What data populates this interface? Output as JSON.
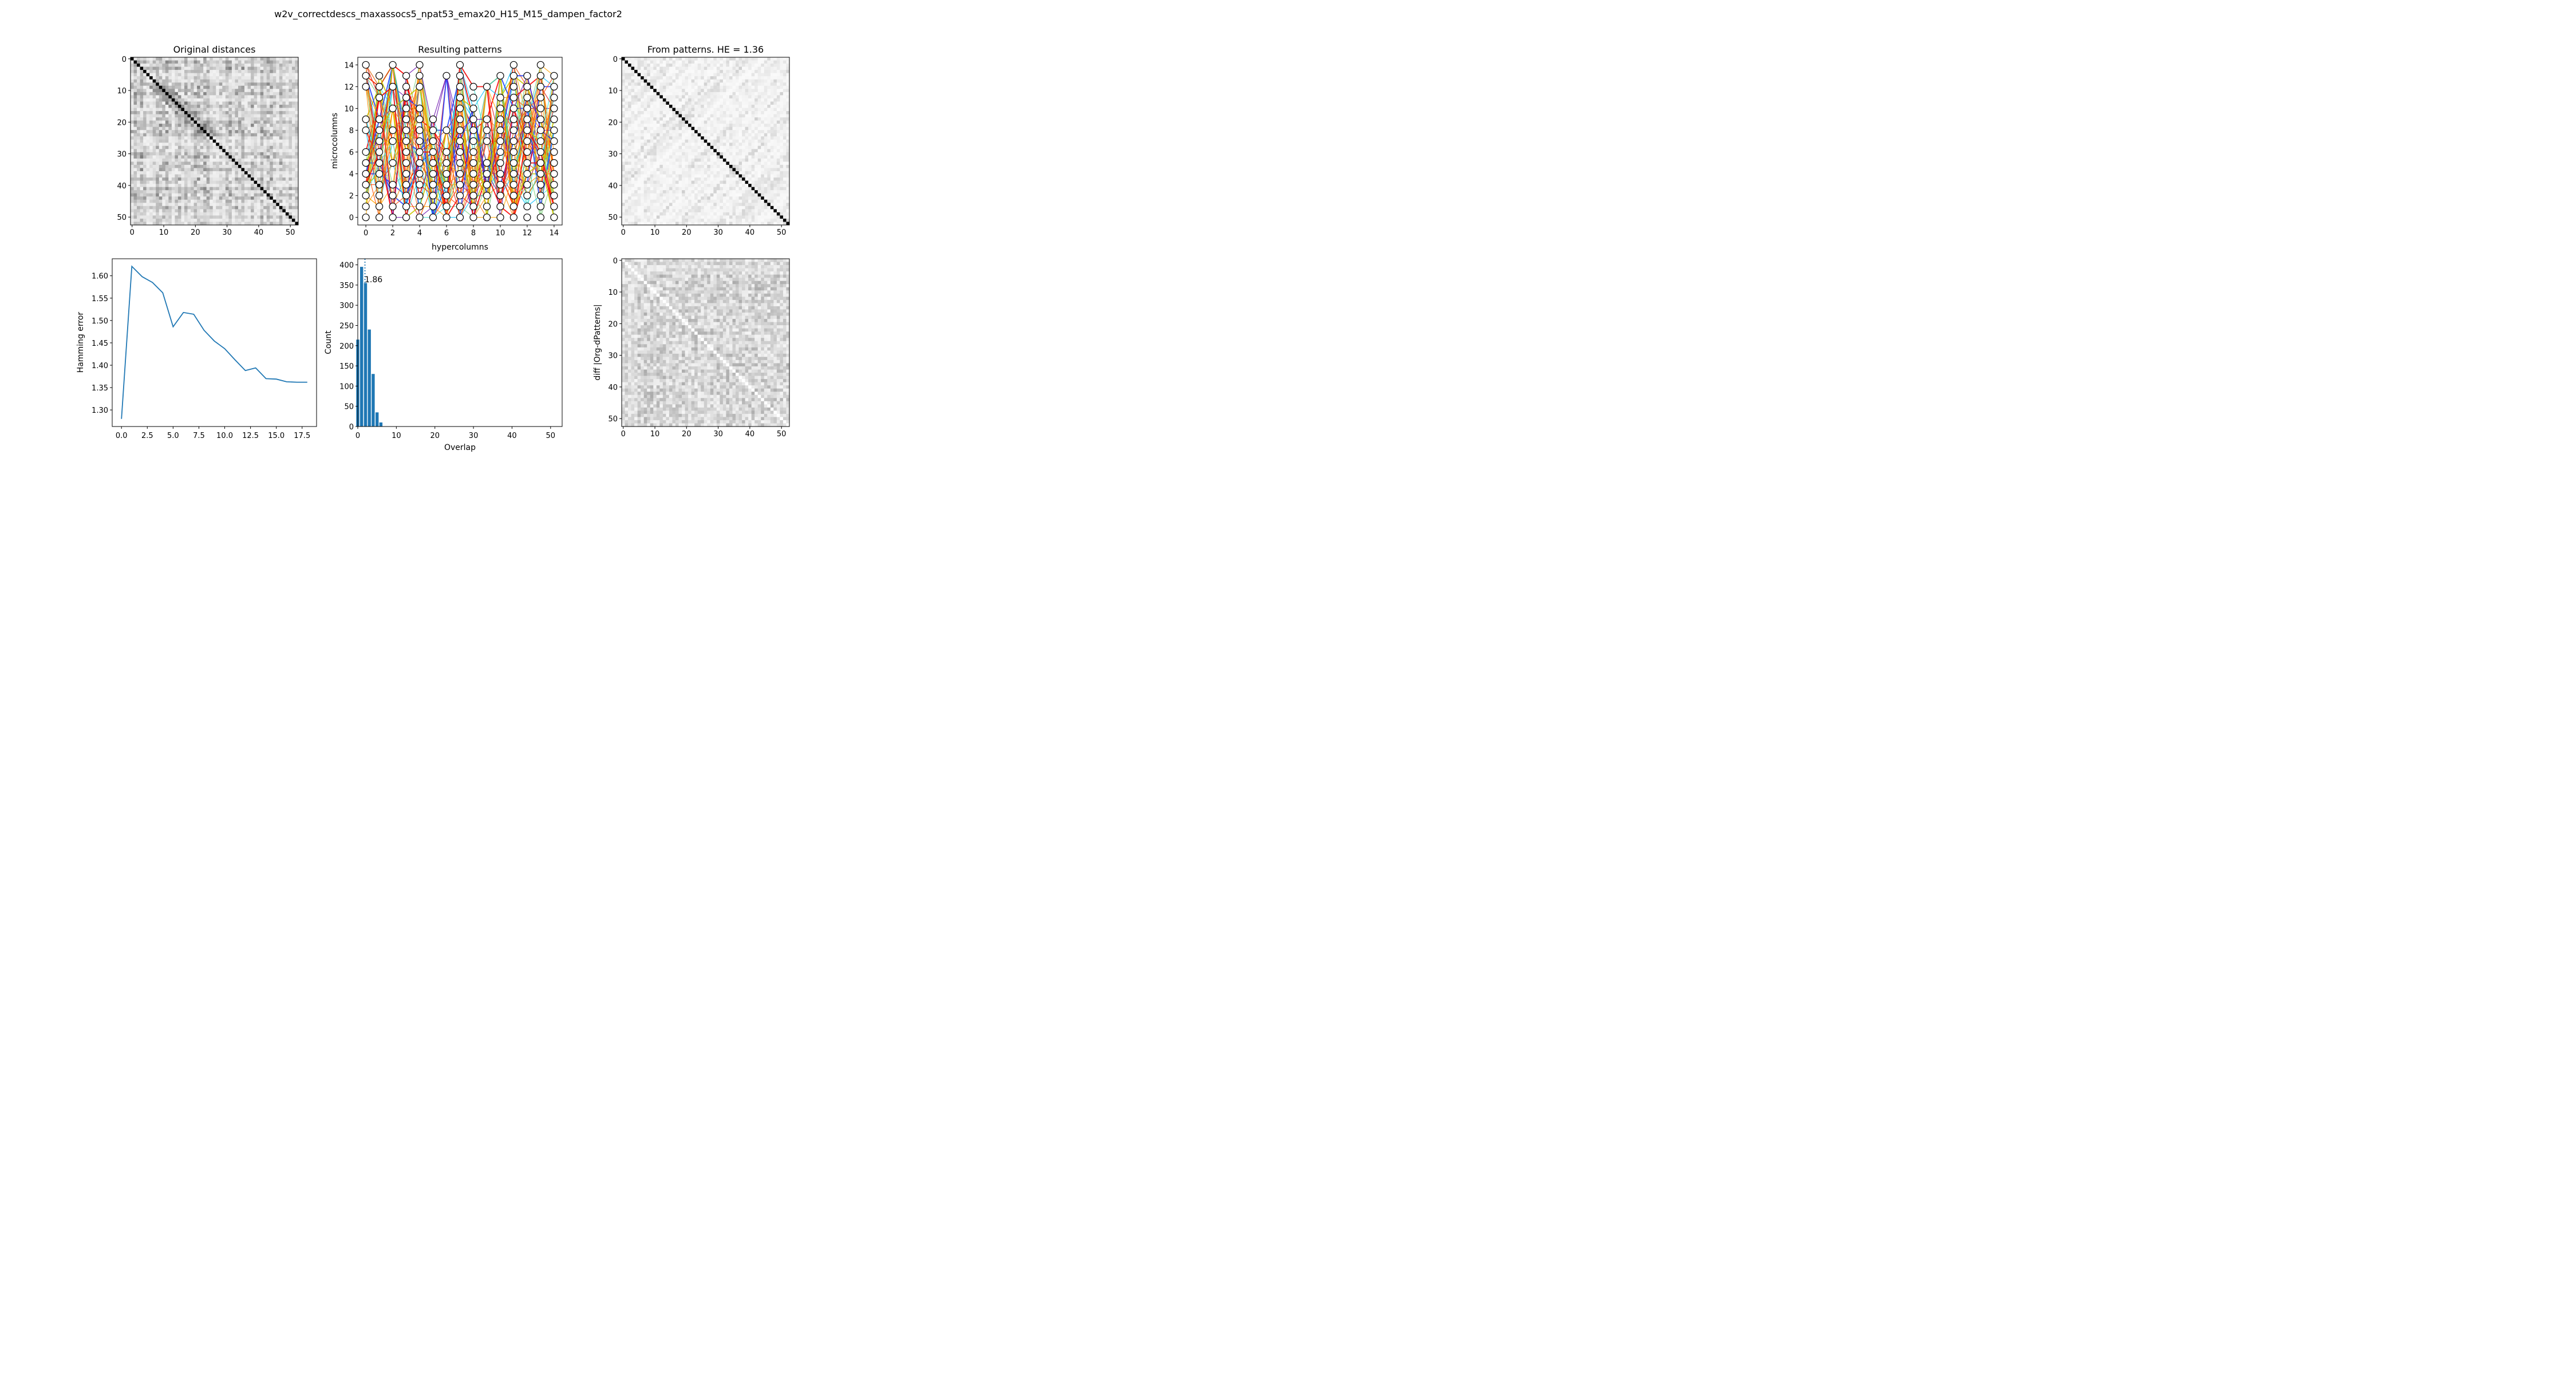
{
  "suptitle": "w2v_correctdescs_maxassocs5_npat53_emax20_H15_M15_dampen_factor2",
  "chart_data": [
    {
      "type": "heatmap",
      "title": "Original distances",
      "xlabel": "",
      "ylabel": "",
      "size": 53,
      "xticks": [
        0,
        10,
        20,
        30,
        40,
        50
      ],
      "yticks": [
        0,
        10,
        20,
        30,
        40,
        50
      ],
      "colormap": "gray_r",
      "intensity": "medium"
    },
    {
      "type": "line",
      "title": "Resulting patterns",
      "xlabel": "hypercolumns",
      "ylabel": "microcolumns",
      "xlim": [
        -0.6,
        14.6
      ],
      "ylim": [
        -0.7,
        14.7
      ],
      "xticks": [
        0,
        2,
        4,
        6,
        8,
        10,
        12,
        14
      ],
      "yticks": [
        0,
        2,
        4,
        6,
        8,
        10,
        12,
        14
      ],
      "n_patterns": 53,
      "colormap": "rainbow",
      "active_units": [
        [
          0,
          1,
          2,
          3,
          4,
          5,
          6,
          8,
          9,
          12,
          13,
          14
        ],
        [
          0,
          1,
          2,
          3,
          4,
          5,
          6,
          7,
          8,
          9,
          11,
          12,
          13
        ],
        [
          0,
          1,
          2,
          3,
          5,
          7,
          8,
          10,
          12,
          14
        ],
        [
          0,
          1,
          2,
          3,
          4,
          5,
          6,
          7,
          8,
          9,
          10,
          11,
          12,
          13
        ],
        [
          0,
          1,
          2,
          3,
          4,
          5,
          6,
          7,
          8,
          9,
          10,
          12,
          13,
          14
        ],
        [
          0,
          1,
          2,
          3,
          4,
          5,
          6,
          7,
          8,
          9
        ],
        [
          0,
          1,
          2,
          3,
          4,
          5,
          6,
          8,
          13
        ],
        [
          0,
          1,
          2,
          3,
          4,
          5,
          6,
          7,
          8,
          9,
          10,
          11,
          12,
          13,
          14
        ],
        [
          0,
          1,
          2,
          3,
          4,
          5,
          6,
          7,
          8,
          9,
          10,
          11,
          12
        ],
        [
          0,
          1,
          2,
          3,
          4,
          5,
          7,
          8,
          9,
          12
        ],
        [
          0,
          1,
          2,
          3,
          4,
          5,
          6,
          7,
          8,
          9,
          10,
          11,
          13
        ],
        [
          0,
          1,
          2,
          3,
          4,
          5,
          6,
          7,
          8,
          9,
          10,
          11,
          12,
          13,
          14
        ],
        [
          0,
          1,
          2,
          3,
          4,
          5,
          6,
          7,
          8,
          9,
          10,
          11,
          12,
          13
        ],
        [
          0,
          1,
          2,
          3,
          4,
          5,
          6,
          7,
          8,
          9,
          10,
          11,
          12,
          13,
          14
        ],
        [
          0,
          1,
          2,
          3,
          4,
          5,
          6,
          7,
          8,
          9,
          10,
          11,
          12,
          13
        ]
      ]
    },
    {
      "type": "heatmap",
      "title": "From patterns. HE = 1.36",
      "xlabel": "",
      "ylabel": "",
      "size": 53,
      "xticks": [
        0,
        10,
        20,
        30,
        40,
        50
      ],
      "yticks": [
        0,
        10,
        20,
        30,
        40,
        50
      ],
      "colormap": "gray_r",
      "intensity": "light"
    },
    {
      "type": "line",
      "title": "",
      "xlabel": "",
      "ylabel": "Hamming error",
      "x": [
        0,
        1,
        2,
        3,
        4,
        5,
        6,
        7,
        8,
        9,
        10,
        11,
        12,
        13,
        14,
        15,
        16,
        17,
        18
      ],
      "y": [
        1.28,
        1.621,
        1.598,
        1.585,
        1.562,
        1.486,
        1.518,
        1.514,
        1.478,
        1.454,
        1.437,
        1.412,
        1.388,
        1.394,
        1.37,
        1.369,
        1.363,
        1.362,
        1.362
      ],
      "xlim": [
        -0.9,
        18.9
      ],
      "ylim": [
        1.263,
        1.638
      ],
      "xticks": [
        "0.0",
        "2.5",
        "5.0",
        "7.5",
        "10.0",
        "12.5",
        "15.0",
        "17.5"
      ],
      "yticks": [
        "1.30",
        "1.35",
        "1.40",
        "1.45",
        "1.50",
        "1.55",
        "1.60"
      ],
      "color": "#1f77b4"
    },
    {
      "type": "bar",
      "title": "",
      "xlabel": "Overlap",
      "ylabel": "Count",
      "x": [
        0,
        1,
        2,
        3,
        4,
        5,
        6
      ],
      "values": [
        215,
        395,
        355,
        240,
        130,
        35,
        10
      ],
      "xlim": [
        0,
        53
      ],
      "ylim": [
        0,
        415
      ],
      "xticks": [
        0,
        10,
        20,
        30,
        40,
        50
      ],
      "yticks": [
        0,
        50,
        100,
        150,
        200,
        250,
        300,
        350,
        400
      ],
      "mean_line": 1.86,
      "annotation": "1.86",
      "color": "#1f77b4"
    },
    {
      "type": "heatmap",
      "title": "",
      "xlabel": "",
      "ylabel": "diff |Org-dPatterns|",
      "size": 53,
      "xticks": [
        0,
        10,
        20,
        30,
        40,
        50
      ],
      "yticks": [
        0,
        10,
        20,
        30,
        40,
        50
      ],
      "colormap": "gray_r",
      "intensity": "diff"
    }
  ]
}
